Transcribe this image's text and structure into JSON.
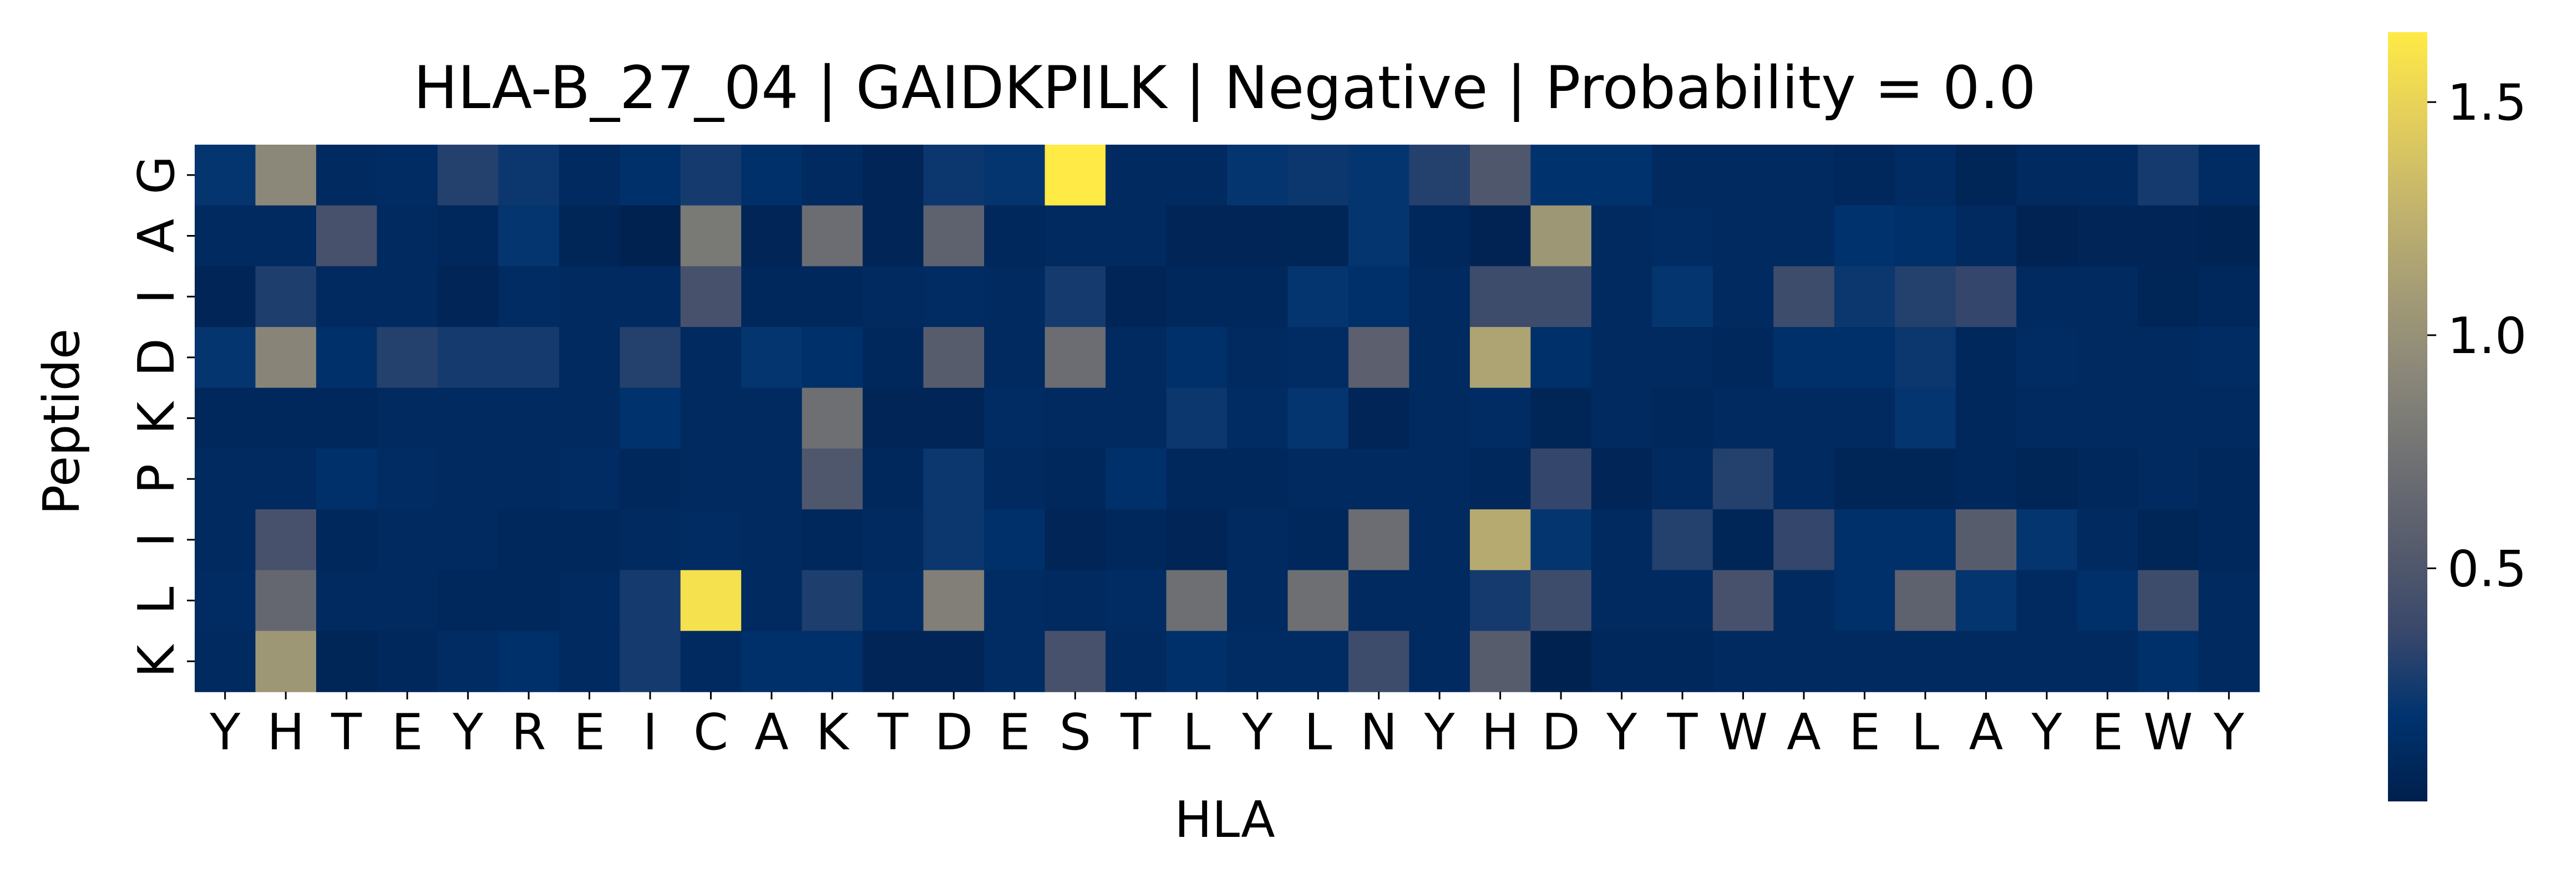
{
  "chart_data": {
    "type": "heatmap",
    "title": "HLA-B_27_04 | GAIDKPILK | Negative | Probability = 0.0",
    "xlabel": "HLA",
    "ylabel": "Peptide",
    "x_categories": [
      "Y",
      "H",
      "T",
      "E",
      "Y",
      "R",
      "E",
      "I",
      "C",
      "A",
      "K",
      "T",
      "D",
      "E",
      "S",
      "T",
      "L",
      "Y",
      "L",
      "N",
      "Y",
      "H",
      "D",
      "Y",
      "T",
      "W",
      "A",
      "E",
      "L",
      "A",
      "Y",
      "E",
      "W",
      "Y"
    ],
    "y_categories": [
      "G",
      "A",
      "I",
      "D",
      "K",
      "P",
      "I",
      "L",
      "K"
    ],
    "values": [
      [
        0.2,
        0.92,
        0.1,
        0.12,
        0.3,
        0.22,
        0.1,
        0.15,
        0.25,
        0.15,
        0.1,
        0.05,
        0.22,
        0.2,
        1.65,
        0.1,
        0.1,
        0.2,
        0.22,
        0.2,
        0.3,
        0.5,
        0.18,
        0.18,
        0.1,
        0.1,
        0.1,
        0.08,
        0.12,
        0.06,
        0.1,
        0.1,
        0.25,
        0.12
      ],
      [
        0.1,
        0.1,
        0.45,
        0.1,
        0.08,
        0.2,
        0.06,
        0.02,
        0.8,
        0.05,
        0.7,
        0.05,
        0.6,
        0.08,
        0.1,
        0.1,
        0.05,
        0.05,
        0.06,
        0.2,
        0.08,
        0.03,
        1.05,
        0.1,
        0.12,
        0.1,
        0.1,
        0.18,
        0.15,
        0.1,
        0.03,
        0.05,
        0.05,
        0.04
      ],
      [
        0.05,
        0.28,
        0.1,
        0.1,
        0.05,
        0.12,
        0.1,
        0.1,
        0.45,
        0.08,
        0.08,
        0.1,
        0.12,
        0.1,
        0.25,
        0.05,
        0.08,
        0.08,
        0.2,
        0.15,
        0.1,
        0.4,
        0.4,
        0.1,
        0.2,
        0.1,
        0.4,
        0.22,
        0.3,
        0.35,
        0.1,
        0.1,
        0.06,
        0.08
      ],
      [
        0.2,
        0.9,
        0.15,
        0.3,
        0.25,
        0.25,
        0.1,
        0.3,
        0.1,
        0.2,
        0.15,
        0.08,
        0.55,
        0.1,
        0.7,
        0.1,
        0.15,
        0.1,
        0.12,
        0.58,
        0.1,
        1.15,
        0.15,
        0.1,
        0.1,
        0.08,
        0.15,
        0.15,
        0.22,
        0.08,
        0.12,
        0.1,
        0.1,
        0.12
      ],
      [
        0.08,
        0.08,
        0.08,
        0.1,
        0.1,
        0.1,
        0.1,
        0.18,
        0.1,
        0.1,
        0.72,
        0.05,
        0.05,
        0.12,
        0.1,
        0.1,
        0.22,
        0.12,
        0.2,
        0.05,
        0.1,
        0.12,
        0.06,
        0.1,
        0.08,
        0.1,
        0.1,
        0.1,
        0.2,
        0.08,
        0.1,
        0.1,
        0.1,
        0.1
      ],
      [
        0.1,
        0.1,
        0.15,
        0.12,
        0.1,
        0.1,
        0.12,
        0.08,
        0.1,
        0.1,
        0.5,
        0.08,
        0.22,
        0.1,
        0.08,
        0.15,
        0.08,
        0.08,
        0.1,
        0.1,
        0.1,
        0.08,
        0.35,
        0.05,
        0.1,
        0.3,
        0.1,
        0.06,
        0.06,
        0.08,
        0.06,
        0.08,
        0.1,
        0.08
      ],
      [
        0.1,
        0.45,
        0.08,
        0.1,
        0.1,
        0.08,
        0.08,
        0.1,
        0.12,
        0.1,
        0.08,
        0.1,
        0.22,
        0.15,
        0.05,
        0.08,
        0.05,
        0.1,
        0.08,
        0.7,
        0.1,
        1.2,
        0.2,
        0.1,
        0.3,
        0.06,
        0.35,
        0.15,
        0.15,
        0.55,
        0.2,
        0.1,
        0.06,
        0.08
      ],
      [
        0.12,
        0.65,
        0.1,
        0.1,
        0.08,
        0.08,
        0.1,
        0.25,
        1.58,
        0.1,
        0.28,
        0.12,
        0.85,
        0.12,
        0.1,
        0.12,
        0.72,
        0.1,
        0.72,
        0.1,
        0.1,
        0.25,
        0.4,
        0.1,
        0.1,
        0.45,
        0.1,
        0.15,
        0.6,
        0.2,
        0.1,
        0.15,
        0.4,
        0.1
      ],
      [
        0.1,
        1.05,
        0.06,
        0.08,
        0.12,
        0.15,
        0.1,
        0.25,
        0.1,
        0.15,
        0.15,
        0.05,
        0.05,
        0.12,
        0.45,
        0.1,
        0.15,
        0.12,
        0.12,
        0.4,
        0.1,
        0.55,
        0.02,
        0.08,
        0.08,
        0.1,
        0.1,
        0.1,
        0.1,
        0.1,
        0.1,
        0.1,
        0.15,
        0.1
      ]
    ],
    "colormap": "cividis",
    "colormap_stops": [
      "#00204d",
      "#00336f",
      "#39486b",
      "#575c6d",
      "#707173",
      "#8a8779",
      "#a69d75",
      "#c4b56c",
      "#e4cf5b",
      "#ffea46"
    ],
    "vmin": 0.0,
    "vmax": 1.65,
    "colorbar_ticks": [
      0.5,
      1.0,
      1.5
    ],
    "colorbar_tick_labels": [
      "0.5",
      "1.0",
      "1.5"
    ]
  }
}
